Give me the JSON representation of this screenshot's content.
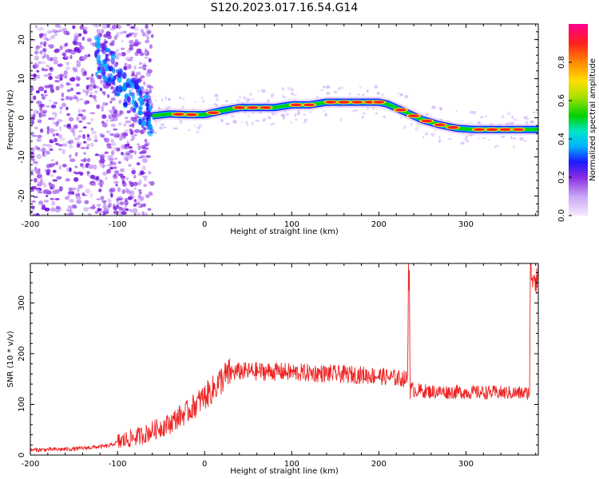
{
  "chart_data": [
    {
      "type": "heatmap",
      "title": "S120.2023.017.16.54.G14",
      "xlabel": "Height of straight line (km)",
      "ylabel": "Frequency (Hz)",
      "xlim": [
        -200,
        383
      ],
      "ylim": [
        -25,
        24
      ],
      "xticks": [
        -200,
        -100,
        0,
        100,
        200,
        300
      ],
      "yticks": [
        -20,
        -10,
        0,
        10,
        20
      ],
      "colorbar": {
        "label": "Normalized spectral amplitude",
        "range": [
          0,
          1
        ],
        "ticks": [
          0.0,
          0.2,
          0.4,
          0.6,
          0.8
        ],
        "colors": [
          "#f4eaff",
          "#c9a6f5",
          "#8a2be2",
          "#1a1aff",
          "#00b0ff",
          "#00e5c8",
          "#00d000",
          "#a8e000",
          "#ffe000",
          "#ff8800",
          "#ff2020",
          "#ff0090"
        ]
      },
      "ridge": {
        "x": [
          -60,
          -40,
          -20,
          0,
          20,
          40,
          60,
          80,
          100,
          120,
          140,
          160,
          180,
          200,
          210,
          230,
          250,
          270,
          290,
          310,
          330,
          350,
          370,
          383
        ],
        "y": [
          0.5,
          1.0,
          0.8,
          0.8,
          1.8,
          2.6,
          2.6,
          2.6,
          3.3,
          3.3,
          4.0,
          4.0,
          4.0,
          4.0,
          3.5,
          1.5,
          -0.5,
          -1.8,
          -2.7,
          -3.0,
          -3.0,
          -3.0,
          -3.0,
          -3.0
        ]
      }
    },
    {
      "type": "line",
      "title": "",
      "xlabel": "Height of straight line (km)",
      "ylabel": "SNR (10 * v/v)",
      "xlim": [
        -200,
        383
      ],
      "ylim": [
        0,
        378
      ],
      "xticks": [
        -200,
        -100,
        0,
        100,
        200,
        300
      ],
      "yticks": [
        0,
        100,
        200,
        300
      ],
      "series": [
        {
          "color": "#ee2222",
          "x": [
            -200,
            -150,
            -110,
            -100,
            -90,
            -80,
            -70,
            -60,
            -50,
            -40,
            -30,
            -20,
            -10,
            0,
            10,
            20,
            30,
            40,
            60,
            80,
            100,
            120,
            150,
            180,
            200,
            220,
            233,
            234,
            235,
            236,
            237,
            240,
            260,
            300,
            340,
            370,
            373,
            374,
            375,
            383
          ],
          "y": [
            10,
            12,
            18,
            25,
            30,
            35,
            40,
            48,
            55,
            62,
            75,
            85,
            100,
            115,
            130,
            150,
            162,
            165,
            165,
            165,
            163,
            162,
            160,
            158,
            156,
            152,
            150,
            370,
            360,
            115,
            132,
            128,
            125,
            124,
            123,
            122,
            125,
            370,
            360,
            355
          ]
        }
      ]
    }
  ]
}
